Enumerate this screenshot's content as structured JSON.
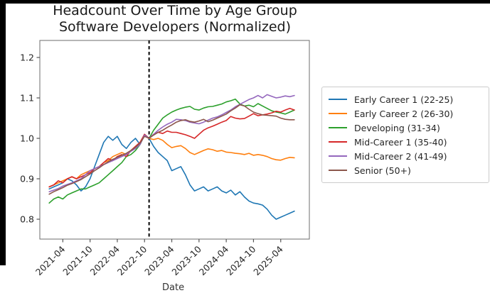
{
  "chart_data": {
    "type": "line",
    "title": "Headcount Over Time by Age Group",
    "subtitle": "Software Developers (Normalized)",
    "xlabel": "Date",
    "ylabel": "",
    "grid": false,
    "legend_position": "right-outside",
    "x_unit": "month",
    "x_start": "2021-01",
    "x_end": "2025-07",
    "x_ticklabels": [
      "2021-04",
      "2021-10",
      "2022-04",
      "2022-10",
      "2023-04",
      "2023-10",
      "2024-04",
      "2024-10",
      "2025-04"
    ],
    "x_tick_month_indices": [
      3,
      9,
      15,
      21,
      27,
      33,
      39,
      45,
      51
    ],
    "y_ticklabels": [
      "0.8",
      "0.9",
      "1.0",
      "1.1",
      "1.2"
    ],
    "y_tick_values": [
      0.8,
      0.9,
      1.0,
      1.1,
      1.2
    ],
    "ylim": [
      0.751,
      1.242
    ],
    "event_line": {
      "type": "vline",
      "month_index": 22,
      "approx_date": "2022-11",
      "style": "dashed",
      "color": "#000000"
    },
    "series": [
      {
        "name": "Early Career 1 (22-25)",
        "color": "#1f77b4",
        "values": [
          0.875,
          0.88,
          0.885,
          0.89,
          0.9,
          0.895,
          0.885,
          0.87,
          0.88,
          0.9,
          0.93,
          0.96,
          0.99,
          1.005,
          0.995,
          1.005,
          0.985,
          0.975,
          0.99,
          1.0,
          0.985,
          1.01,
          1.0,
          0.98,
          0.965,
          0.955,
          0.945,
          0.92,
          0.925,
          0.93,
          0.91,
          0.885,
          0.87,
          0.875,
          0.88,
          0.87,
          0.875,
          0.88,
          0.87,
          0.865,
          0.872,
          0.86,
          0.868,
          0.855,
          0.845,
          0.84,
          0.838,
          0.835,
          0.825,
          0.81,
          0.8,
          0.805,
          0.81,
          0.815,
          0.82
        ]
      },
      {
        "name": "Early Career 2 (26-30)",
        "color": "#ff7f0e",
        "values": [
          0.88,
          0.885,
          0.89,
          0.895,
          0.9,
          0.905,
          0.9,
          0.91,
          0.915,
          0.92,
          0.925,
          0.93,
          0.94,
          0.945,
          0.955,
          0.96,
          0.965,
          0.96,
          0.97,
          0.98,
          0.99,
          1.008,
          1.0,
          0.997,
          1.0,
          0.995,
          0.985,
          0.977,
          0.98,
          0.982,
          0.975,
          0.965,
          0.96,
          0.965,
          0.97,
          0.974,
          0.972,
          0.968,
          0.97,
          0.966,
          0.965,
          0.963,
          0.962,
          0.96,
          0.963,
          0.958,
          0.96,
          0.958,
          0.955,
          0.95,
          0.947,
          0.946,
          0.95,
          0.953,
          0.952
        ]
      },
      {
        "name": "Developing (31-34)",
        "color": "#2ca02c",
        "values": [
          0.84,
          0.85,
          0.855,
          0.85,
          0.86,
          0.865,
          0.87,
          0.875,
          0.875,
          0.88,
          0.885,
          0.89,
          0.9,
          0.91,
          0.92,
          0.93,
          0.94,
          0.955,
          0.96,
          0.97,
          0.985,
          1.008,
          1.0,
          1.02,
          1.035,
          1.05,
          1.058,
          1.065,
          1.07,
          1.074,
          1.077,
          1.079,
          1.072,
          1.07,
          1.075,
          1.078,
          1.079,
          1.082,
          1.085,
          1.09,
          1.093,
          1.097,
          1.085,
          1.08,
          1.082,
          1.078,
          1.086,
          1.08,
          1.074,
          1.068,
          1.065,
          1.063,
          1.06,
          1.065,
          1.07
        ]
      },
      {
        "name": "Mid-Career 1 (35-40)",
        "color": "#d62728",
        "values": [
          0.88,
          0.885,
          0.895,
          0.89,
          0.9,
          0.905,
          0.9,
          0.905,
          0.91,
          0.915,
          0.925,
          0.93,
          0.94,
          0.95,
          0.945,
          0.955,
          0.96,
          0.955,
          0.97,
          0.98,
          0.99,
          1.01,
          1.0,
          1.01,
          1.015,
          1.012,
          1.018,
          1.015,
          1.015,
          1.012,
          1.009,
          1.005,
          1.0,
          1.01,
          1.02,
          1.026,
          1.03,
          1.035,
          1.04,
          1.044,
          1.054,
          1.05,
          1.048,
          1.049,
          1.055,
          1.061,
          1.056,
          1.058,
          1.06,
          1.063,
          1.067,
          1.065,
          1.07,
          1.074,
          1.07
        ]
      },
      {
        "name": "Mid-Career 2 (41-49)",
        "color": "#9467bd",
        "values": [
          0.868,
          0.872,
          0.876,
          0.882,
          0.886,
          0.89,
          0.895,
          0.9,
          0.91,
          0.92,
          0.925,
          0.93,
          0.935,
          0.94,
          0.945,
          0.95,
          0.955,
          0.96,
          0.968,
          0.975,
          0.985,
          1.008,
          1.0,
          1.01,
          1.02,
          1.028,
          1.035,
          1.04,
          1.047,
          1.046,
          1.044,
          1.04,
          1.038,
          1.036,
          1.04,
          1.045,
          1.05,
          1.053,
          1.058,
          1.064,
          1.07,
          1.078,
          1.084,
          1.09,
          1.096,
          1.1,
          1.106,
          1.1,
          1.108,
          1.104,
          1.1,
          1.102,
          1.105,
          1.103,
          1.106
        ]
      },
      {
        "name": "Senior (50+)",
        "color": "#8c564b",
        "values": [
          0.862,
          0.868,
          0.873,
          0.878,
          0.884,
          0.888,
          0.893,
          0.898,
          0.905,
          0.912,
          0.92,
          0.927,
          0.935,
          0.942,
          0.948,
          0.953,
          0.958,
          0.963,
          0.97,
          0.978,
          0.988,
          1.005,
          1.0,
          1.008,
          1.015,
          1.02,
          1.027,
          1.033,
          1.04,
          1.044,
          1.046,
          1.042,
          1.04,
          1.043,
          1.047,
          1.041,
          1.045,
          1.05,
          1.055,
          1.06,
          1.068,
          1.075,
          1.083,
          1.08,
          1.072,
          1.065,
          1.061,
          1.058,
          1.057,
          1.056,
          1.055,
          1.05,
          1.047,
          1.046,
          1.046
        ]
      }
    ]
  }
}
